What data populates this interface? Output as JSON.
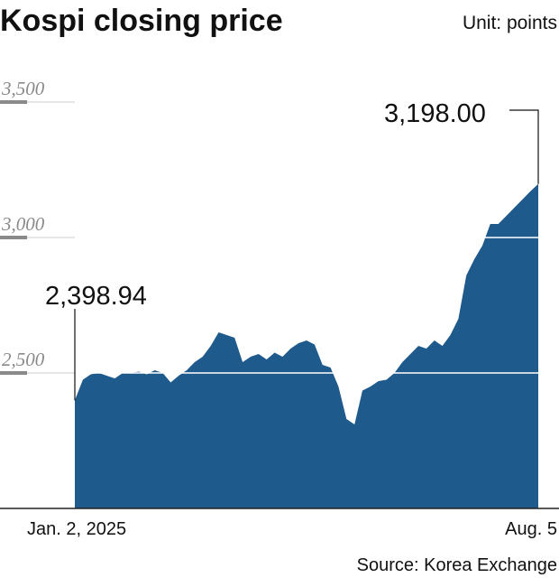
{
  "chart_data": {
    "type": "area",
    "title": "Kospi closing price",
    "unit": "Unit: points",
    "source": "Source: Korea Exchange",
    "ylim": [
      2000,
      3500
    ],
    "y_ticks": [
      3500,
      3000,
      2500
    ],
    "y_tick_labels": [
      "3,500",
      "3,000",
      "2,500"
    ],
    "x_tick_labels": [
      "Jan. 2, 2025",
      "Aug. 5"
    ],
    "grid": true,
    "color": "#1f5a8c",
    "annotations": [
      {
        "index": 0,
        "label": "2,398.94",
        "value": 2398.94
      },
      {
        "index": 58,
        "label": "3,198.00",
        "value": 3198.0
      }
    ],
    "values": [
      2398.94,
      2475,
      2495,
      2500,
      2490,
      2480,
      2500,
      2500,
      2505,
      2495,
      2510,
      2500,
      2465,
      2490,
      2510,
      2540,
      2560,
      2600,
      2650,
      2640,
      2630,
      2540,
      2560,
      2570,
      2550,
      2575,
      2560,
      2590,
      2610,
      2620,
      2605,
      2530,
      2520,
      2450,
      2330,
      2310,
      2435,
      2450,
      2470,
      2475,
      2500,
      2540,
      2570,
      2600,
      2590,
      2620,
      2600,
      2640,
      2700,
      2860,
      2920,
      2970,
      3050,
      3050,
      3080,
      3110,
      3140,
      3170,
      3198.0
    ]
  }
}
